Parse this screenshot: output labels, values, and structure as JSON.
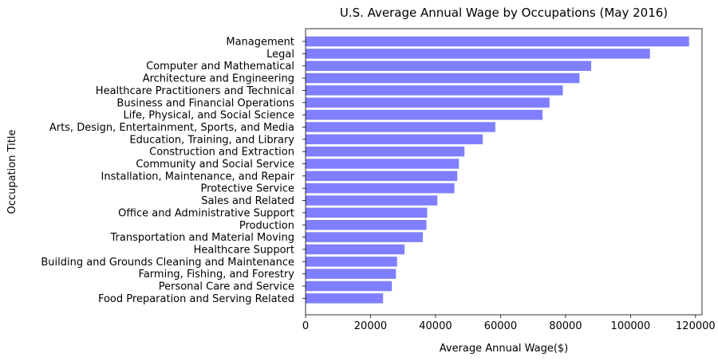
{
  "chart_data": {
    "type": "bar",
    "orientation": "horizontal",
    "title": "U.S. Average Annual Wage by Occupations (May 2016)",
    "xlabel": "Average Annual Wage($)",
    "ylabel": "Occupation Title",
    "xlim": [
      0,
      122000
    ],
    "xticks": [
      0,
      20000,
      40000,
      60000,
      80000,
      100000,
      120000
    ],
    "xtick_labels": [
      "0",
      "20000",
      "40000",
      "60000",
      "80000",
      "100000",
      "120000"
    ],
    "grid": false,
    "bar_color": "#7f7fff",
    "categories": [
      "Management",
      "Legal",
      "Computer and Mathematical",
      "Architecture and Engineering",
      "Healthcare Practitioners and Technical",
      "Business and Financial Operations",
      "Life, Physical, and Social Science",
      "Arts, Design, Entertainment, Sports, and Media",
      "Education, Training, and Library",
      "Construction and Extraction",
      "Community and Social Service",
      "Installation, Maintenance, and Repair",
      "Protective Service",
      "Sales and Related",
      "Office and Administrative Support",
      "Production",
      "Transportation and Material Moving",
      "Healthcare Support",
      "Building and Grounds Cleaning and Maintenance",
      "Farming, Fishing, and Forestry",
      "Personal Care and Service",
      "Food Preparation and Serving Related"
    ],
    "values": [
      118020,
      105980,
      87880,
      84300,
      79160,
      75070,
      72930,
      58390,
      54520,
      48900,
      47200,
      46690,
      45810,
      40560,
      37410,
      37190,
      36090,
      30470,
      28160,
      27810,
      26550,
      23850
    ]
  }
}
